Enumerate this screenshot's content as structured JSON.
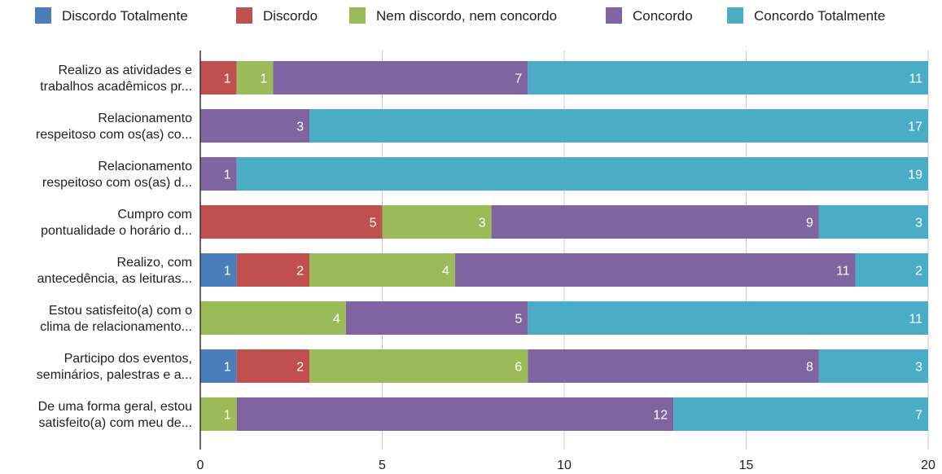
{
  "chart_data": {
    "type": "bar",
    "orientation": "horizontal",
    "stacked": true,
    "legend_position": "top",
    "grid": true,
    "xlim": [
      0,
      20
    ],
    "x_ticks": [
      "0",
      "5",
      "10",
      "15",
      "20"
    ],
    "categories": [
      [
        "Realizo as atividades e",
        "trabalhos acadêmicos pr..."
      ],
      [
        "Relacionamento",
        "respeitoso com os(as) co..."
      ],
      [
        "Relacionamento",
        "respeitoso com os(as) d..."
      ],
      [
        "Cumpro com",
        "pontualidade o horário d..."
      ],
      [
        "Realizo, com",
        "antecedência, as leituras..."
      ],
      [
        "Estou satisfeito(a) com o",
        "clima de relacionamento..."
      ],
      [
        "Participo dos eventos,",
        "seminários, palestras e a..."
      ],
      [
        "De uma forma geral, estou",
        "satisfeito(a) com meu de..."
      ]
    ],
    "series": [
      {
        "name": "Discordo Totalmente",
        "color": "#4a7ebb",
        "values": [
          0,
          0,
          0,
          0,
          1,
          0,
          1,
          0
        ]
      },
      {
        "name": "Discordo",
        "color": "#c0504d",
        "values": [
          1,
          0,
          0,
          5,
          2,
          0,
          2,
          0
        ]
      },
      {
        "name": "Nem discordo, nem concordo",
        "color": "#9bbb59",
        "values": [
          1,
          0,
          0,
          3,
          4,
          4,
          6,
          1
        ]
      },
      {
        "name": "Concordo",
        "color": "#8064a2",
        "values": [
          7,
          3,
          1,
          9,
          11,
          5,
          8,
          12
        ]
      },
      {
        "name": "Concordo Totalmente",
        "color": "#4bacc6",
        "values": [
          11,
          17,
          19,
          3,
          2,
          11,
          3,
          7
        ]
      }
    ]
  }
}
